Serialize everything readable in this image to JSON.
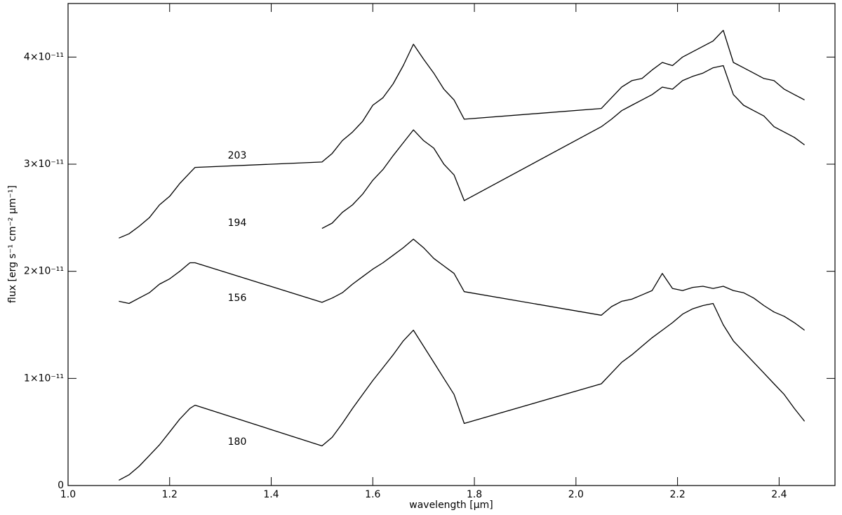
{
  "chart_data": {
    "type": "line",
    "xlabel": "wavelength [μm]",
    "ylabel": "flux [erg s⁻¹ cm⁻² μm⁻¹]",
    "annotations": [
      "203",
      "194",
      "156",
      "180"
    ],
    "xlim": [
      1.0,
      2.51
    ],
    "ylim": [
      0,
      4.5e-11
    ],
    "xticks": [
      {
        "value": 1,
        "label": "1.0"
      },
      1.2,
      1.4,
      1.6,
      1.8,
      {
        "value": 2,
        "label": "2.0"
      },
      2.2,
      2.4
    ],
    "yticks": [
      0,
      {
        "value": 1e-11,
        "label": "1×10⁻¹¹"
      },
      {
        "value": 2e-11,
        "label": "2×10⁻¹¹"
      },
      {
        "value": 3e-11,
        "label": "3×10⁻¹¹"
      },
      {
        "value": 4e-11,
        "label": "4×10⁻¹¹"
      }
    ],
    "grid": false,
    "x": [
      1.1,
      1.12,
      1.14,
      1.16,
      1.18,
      1.2,
      1.22,
      1.24,
      1.25,
      1.5,
      1.52,
      1.54,
      1.56,
      1.58,
      1.6,
      1.62,
      1.64,
      1.66,
      1.68,
      1.7,
      1.72,
      1.74,
      1.76,
      1.78,
      2.05,
      2.07,
      2.09,
      2.11,
      2.13,
      2.15,
      2.17,
      2.19,
      2.21,
      2.23,
      2.25,
      2.27,
      2.29,
      2.31,
      2.33,
      2.35,
      2.37,
      2.39,
      2.41,
      2.43,
      2.45
    ],
    "series": [
      {
        "color": "#000000",
        "values": [
          2.31e-11,
          2.35e-11,
          2.42e-11,
          2.5e-11,
          2.62e-11,
          2.7e-11,
          2.82e-11,
          2.92e-11,
          2.97e-11,
          3.02e-11,
          3.1e-11,
          3.22e-11,
          3.3e-11,
          3.4e-11,
          3.55e-11,
          3.62e-11,
          3.75e-11,
          3.92e-11,
          4.12e-11,
          3.98e-11,
          3.85e-11,
          3.7e-11,
          3.6e-11,
          3.42e-11,
          3.52e-11,
          3.62e-11,
          3.72e-11,
          3.78e-11,
          3.8e-11,
          3.88e-11,
          3.95e-11,
          3.92e-11,
          4e-11,
          4.05e-11,
          4.1e-11,
          4.15e-11,
          4.25e-11,
          3.95e-11,
          3.9e-11,
          3.85e-11,
          3.8e-11,
          3.78e-11,
          3.7e-11,
          3.65e-11,
          3.6e-11
        ]
      },
      {
        "color": "#000000",
        "values": [
          null,
          null,
          null,
          null,
          null,
          null,
          null,
          null,
          null,
          2.4e-11,
          2.45e-11,
          2.55e-11,
          2.62e-11,
          2.72e-11,
          2.85e-11,
          2.95e-11,
          3.08e-11,
          3.2e-11,
          3.32e-11,
          3.22e-11,
          3.15e-11,
          3e-11,
          2.9e-11,
          2.66e-11,
          3.35e-11,
          3.42e-11,
          3.5e-11,
          3.55e-11,
          3.6e-11,
          3.65e-11,
          3.72e-11,
          3.7e-11,
          3.78e-11,
          3.82e-11,
          3.85e-11,
          3.9e-11,
          3.92e-11,
          3.65e-11,
          3.55e-11,
          3.5e-11,
          3.45e-11,
          3.35e-11,
          3.3e-11,
          3.25e-11,
          3.18e-11
        ]
      },
      {
        "color": "#000000",
        "values": [
          1.72e-11,
          1.7e-11,
          1.75e-11,
          1.8e-11,
          1.88e-11,
          1.93e-11,
          2e-11,
          2.08e-11,
          2.08e-11,
          1.71e-11,
          1.75e-11,
          1.8e-11,
          1.88e-11,
          1.95e-11,
          2.02e-11,
          2.08e-11,
          2.15e-11,
          2.22e-11,
          2.3e-11,
          2.22e-11,
          2.12e-11,
          2.05e-11,
          1.98e-11,
          1.81e-11,
          1.59e-11,
          1.67e-11,
          1.72e-11,
          1.74e-11,
          1.78e-11,
          1.82e-11,
          1.98e-11,
          1.84e-11,
          1.82e-11,
          1.85e-11,
          1.86e-11,
          1.84e-11,
          1.86e-11,
          1.82e-11,
          1.8e-11,
          1.75e-11,
          1.68e-11,
          1.62e-11,
          1.58e-11,
          1.52e-11,
          1.45e-11
        ]
      },
      {
        "color": "#000000",
        "values": [
          5e-13,
          1e-12,
          1.8e-12,
          2.8e-12,
          3.8e-12,
          5e-12,
          6.2e-12,
          7.2e-12,
          7.5e-12,
          3.7e-12,
          4.5e-12,
          5.8e-12,
          7.2e-12,
          8.5e-12,
          9.8e-12,
          1.1e-11,
          1.22e-11,
          1.35e-11,
          1.45e-11,
          1.3e-11,
          1.15e-11,
          1e-11,
          8.5e-12,
          5.8e-12,
          9.5e-12,
          1.05e-11,
          1.15e-11,
          1.22e-11,
          1.3e-11,
          1.38e-11,
          1.45e-11,
          1.52e-11,
          1.6e-11,
          1.65e-11,
          1.68e-11,
          1.7e-11,
          1.5e-11,
          1.35e-11,
          1.25e-11,
          1.15e-11,
          1.05e-11,
          9.5e-12,
          8.5e-12,
          7.2e-12,
          6e-12
        ]
      }
    ]
  }
}
